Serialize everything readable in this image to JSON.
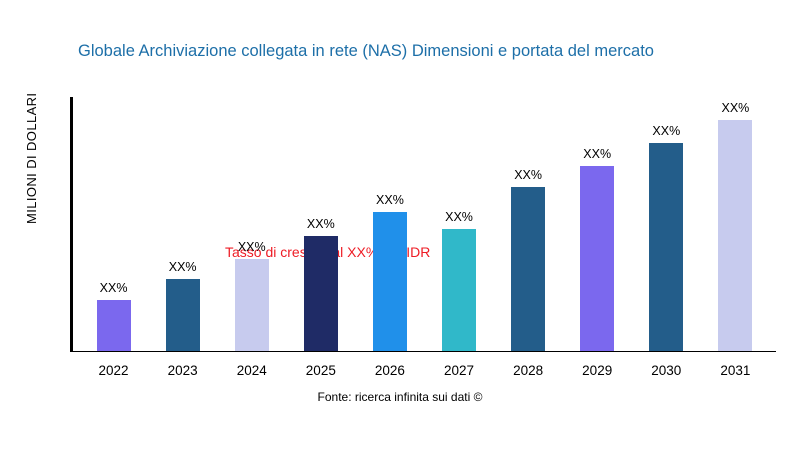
{
  "title": "Globale Archiviazione collegata in rete (NAS) Dimensioni e portata del mercato",
  "annotation": "Tasso di crescita al XX% per IDR",
  "y_axis_label": "MILIONI DI DOLLARI",
  "source": "Fonte: ricerca infinita sui dati ©",
  "chart_data": {
    "type": "bar",
    "title": "Globale Archiviazione collegata in rete (NAS) Dimensioni e portata del mercato",
    "ylabel": "MILIONI DI DOLLARI",
    "xlabel": "",
    "categories": [
      "2022",
      "2023",
      "2024",
      "2025",
      "2026",
      "2027",
      "2028",
      "2029",
      "2030",
      "2031"
    ],
    "values": [
      22,
      31,
      40,
      50,
      60,
      53,
      71,
      80,
      90,
      100
    ],
    "bar_labels": [
      "XX%",
      "XX%",
      "XX%",
      "XX%",
      "XX%",
      "XX%",
      "XX%",
      "XX%",
      "XX%",
      "XX%"
    ],
    "colors": [
      "#7b68ee",
      "#235d8a",
      "#c7cbee",
      "#1f2b66",
      "#2090ea",
      "#30b8c9",
      "#235d8a",
      "#7b68ee",
      "#235d8a",
      "#c7cbee"
    ],
    "ylim": [
      0,
      110
    ],
    "grid": false,
    "legend": false,
    "annotation": "Tasso di crescita al XX% per IDR",
    "source": "Fonte: ricerca infinita sui dati ©"
  }
}
